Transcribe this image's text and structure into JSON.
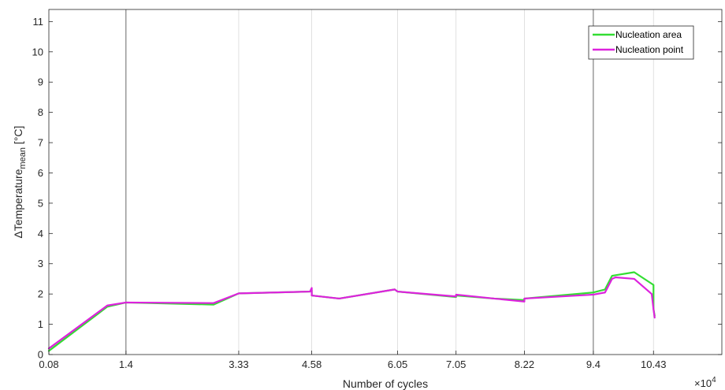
{
  "chart_data": {
    "type": "line",
    "title": "",
    "xlabel": "Number of cycles",
    "ylabel_main": "ΔTemperature",
    "ylabel_sub": "mean",
    "ylabel_unit": " [°C]",
    "x_exponent_base": "×10",
    "x_exponent_power": "4",
    "xlim": [
      0.08,
      11.6
    ],
    "ylim": [
      0,
      11.4
    ],
    "x_ticks": [
      0.08,
      1.4,
      3.33,
      4.58,
      6.05,
      7.05,
      8.22,
      9.4,
      10.43
    ],
    "x_tick_labels": [
      "0.08",
      "1.4",
      "3.33",
      "4.58",
      "6.05",
      "7.05",
      "8.22",
      "9.4",
      "10.43"
    ],
    "x_tick_styles": [
      "light",
      "dark",
      "light",
      "light",
      "light",
      "light",
      "light",
      "dark",
      "light"
    ],
    "y_ticks": [
      0,
      1,
      2,
      3,
      4,
      5,
      6,
      7,
      8,
      9,
      10,
      11
    ],
    "y_tick_labels": [
      "0",
      "1",
      "2",
      "3",
      "4",
      "5",
      "6",
      "7",
      "8",
      "9",
      "10",
      "11"
    ],
    "grid": "vertical",
    "legend_position": "top-right",
    "series": [
      {
        "name": "Nucleation area",
        "color": "#33dd33",
        "x": [
          0.08,
          1.08,
          1.4,
          2.9,
          3.33,
          4.55,
          4.58,
          4.58,
          5.05,
          6.0,
          6.05,
          7.05,
          7.05,
          7.7,
          8.22,
          8.22,
          9.4,
          9.6,
          9.72,
          9.78,
          10.1,
          10.43,
          10.43,
          10.45
        ],
        "y": [
          0.12,
          1.58,
          1.72,
          1.65,
          2.02,
          2.08,
          2.12,
          1.95,
          1.85,
          2.15,
          2.08,
          1.9,
          1.95,
          1.85,
          1.8,
          1.85,
          2.05,
          2.15,
          2.6,
          2.62,
          2.72,
          2.3,
          1.5,
          1.28
        ]
      },
      {
        "name": "Nucleation point",
        "color": "#dd22dd",
        "x": [
          0.08,
          1.08,
          1.4,
          2.9,
          3.33,
          4.55,
          4.58,
          4.58,
          5.05,
          6.0,
          6.05,
          7.05,
          7.05,
          7.7,
          8.22,
          8.22,
          9.4,
          9.6,
          9.72,
          9.78,
          10.1,
          10.4,
          10.43,
          10.45
        ],
        "y": [
          0.2,
          1.62,
          1.72,
          1.7,
          2.02,
          2.08,
          2.2,
          1.95,
          1.85,
          2.15,
          2.08,
          1.92,
          1.98,
          1.85,
          1.75,
          1.85,
          1.98,
          2.05,
          2.5,
          2.55,
          2.5,
          2.0,
          1.5,
          1.22
        ]
      }
    ]
  }
}
